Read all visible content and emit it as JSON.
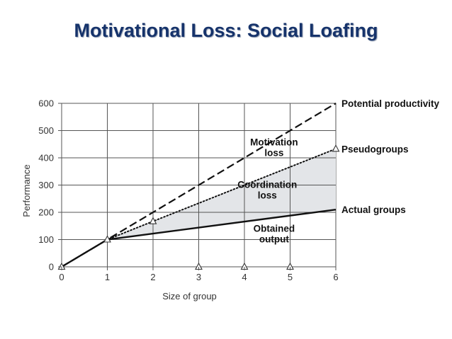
{
  "slide": {
    "title": "Motivational Loss: Social Loafing"
  },
  "chart_data": {
    "type": "line",
    "xlabel": "Size of group",
    "ylabel": "Performance",
    "xlim": [
      0,
      6
    ],
    "ylim": [
      0,
      600
    ],
    "xticks": [
      0,
      1,
      2,
      3,
      4,
      5,
      6
    ],
    "yticks": [
      0,
      100,
      200,
      300,
      400,
      500,
      600
    ],
    "grid": true,
    "series": [
      {
        "name": "Potential productivity",
        "style": "dashed",
        "x": [
          0,
          1,
          6
        ],
        "y": [
          0,
          100,
          600
        ]
      },
      {
        "name": "Pseudogroups",
        "style": "dotted",
        "markers": "triangle",
        "x": [
          0,
          1,
          2,
          6
        ],
        "y": [
          0,
          100,
          167,
          433
        ]
      },
      {
        "name": "Actual groups",
        "style": "solid",
        "x": [
          0,
          1,
          6
        ],
        "y": [
          0,
          100,
          210
        ]
      }
    ],
    "shaded_region": {
      "between": [
        "Pseudogroups",
        "Actual groups"
      ],
      "x": [
        1,
        6
      ],
      "color": "#e3e5e8"
    },
    "annotations": [
      {
        "lines": [
          "Motivation",
          "loss"
        ],
        "x": 4.65,
        "y": 445
      },
      {
        "lines": [
          "Coordination",
          "loss"
        ],
        "x": 4.5,
        "y": 290
      },
      {
        "lines": [
          "Obtained",
          "output"
        ],
        "x": 4.65,
        "y": 128
      }
    ],
    "colors": {
      "line": "#111111",
      "grid": "#555555",
      "shade": "#e3e5e8",
      "title": "#16336b"
    }
  }
}
